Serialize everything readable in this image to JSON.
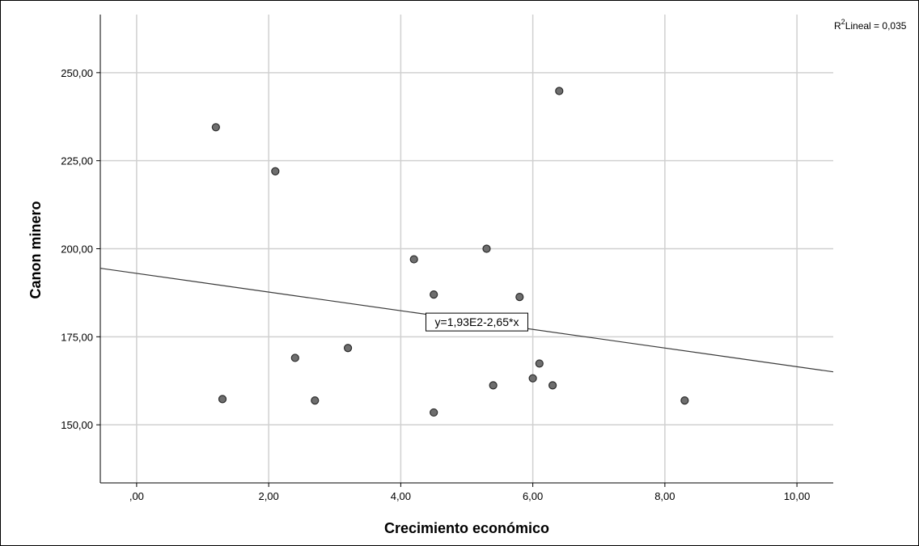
{
  "chart_data": {
    "type": "scatter",
    "title": "",
    "xlabel": "Crecimiento económico",
    "ylabel": "Canon minero",
    "xlim": [
      -0.55,
      10.55
    ],
    "ylim": [
      133.5,
      266.5
    ],
    "x_ticks": [
      0,
      2,
      4,
      6,
      8,
      10
    ],
    "x_tick_labels": [
      ",00",
      "2,00",
      "4,00",
      "6,00",
      "8,00",
      "10,00"
    ],
    "y_ticks": [
      150,
      175,
      200,
      225,
      250
    ],
    "y_tick_labels": [
      "150,00",
      "175,00",
      "200,00",
      "225,00",
      "250,00"
    ],
    "grid": true,
    "points": [
      {
        "x": 1.2,
        "y": 234.5
      },
      {
        "x": 1.3,
        "y": 157.3
      },
      {
        "x": 2.1,
        "y": 222.0
      },
      {
        "x": 2.4,
        "y": 169.0
      },
      {
        "x": 2.7,
        "y": 156.9
      },
      {
        "x": 3.2,
        "y": 171.8
      },
      {
        "x": 4.2,
        "y": 197.0
      },
      {
        "x": 4.5,
        "y": 187.0
      },
      {
        "x": 4.5,
        "y": 153.5
      },
      {
        "x": 5.3,
        "y": 200.0
      },
      {
        "x": 5.4,
        "y": 161.2
      },
      {
        "x": 5.8,
        "y": 186.3
      },
      {
        "x": 6.0,
        "y": 163.2
      },
      {
        "x": 6.1,
        "y": 167.4
      },
      {
        "x": 6.3,
        "y": 161.2
      },
      {
        "x": 6.4,
        "y": 244.8
      },
      {
        "x": 8.3,
        "y": 156.9
      }
    ],
    "fit_line": {
      "intercept": 193.0,
      "slope": -2.65
    },
    "fit_equation_label": "y=1,93E2-2,65*x",
    "r2_label": "Lineal = 0,035",
    "colors": {
      "point_fill": "#6e6e6e",
      "point_stroke": "#2b2b2b",
      "grid": "#d0d0d0",
      "line": "#3a3a3a"
    }
  }
}
